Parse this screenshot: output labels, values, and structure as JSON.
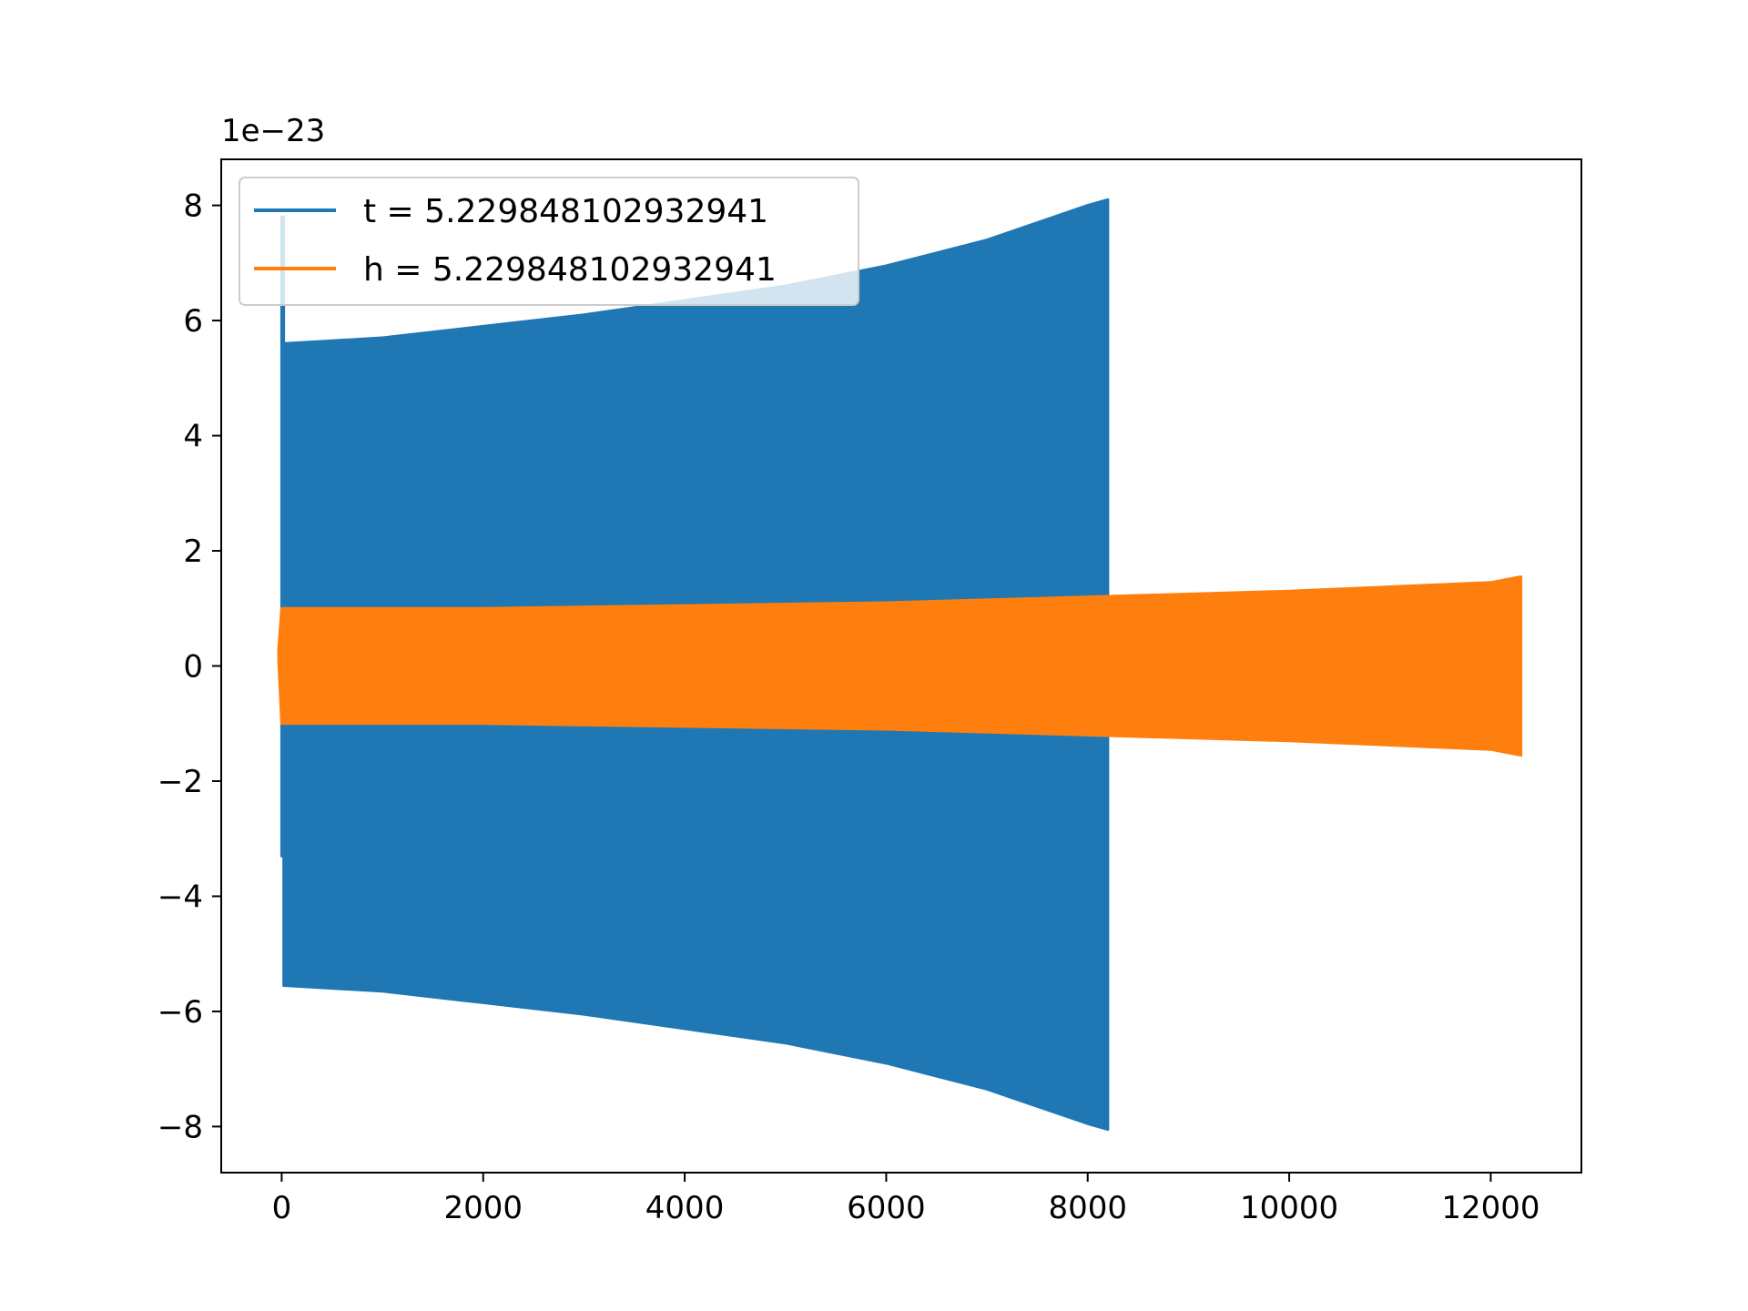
{
  "chart_data": {
    "type": "area",
    "title": "",
    "xlabel": "",
    "ylabel": "",
    "y_offset_text": "1e−23",
    "xlim": [
      -600,
      12900
    ],
    "ylim": [
      -8.8,
      8.8
    ],
    "x_ticks": [
      0,
      2000,
      4000,
      6000,
      8000,
      10000,
      12000
    ],
    "x_tick_labels": [
      "0",
      "2000",
      "4000",
      "6000",
      "8000",
      "10000",
      "12000"
    ],
    "y_ticks": [
      -8,
      -6,
      -4,
      -2,
      0,
      2,
      4,
      6,
      8
    ],
    "y_tick_labels": [
      "−8",
      "−6",
      "−4",
      "−2",
      "0",
      "2",
      "4",
      "6",
      "8"
    ],
    "grid": false,
    "legend_position": "upper-left",
    "series": [
      {
        "name": "t = 5.229848102932941",
        "color": "#1f77b4",
        "envelope_x": [
          0,
          20,
          20,
          1000,
          2000,
          3000,
          4000,
          5000,
          6000,
          7000,
          7500,
          8000,
          8200
        ],
        "upper": [
          7.8,
          7.8,
          5.6,
          5.7,
          5.9,
          6.1,
          6.35,
          6.6,
          6.95,
          7.4,
          7.7,
          8.0,
          8.1
        ],
        "lower": [
          -3.3,
          -3.3,
          -5.55,
          -5.65,
          -5.85,
          -6.05,
          -6.3,
          -6.55,
          -6.9,
          -7.35,
          -7.65,
          -7.95,
          -8.05
        ]
      },
      {
        "name": "h = 5.229848102932941",
        "color": "#ff7f0e",
        "envelope_x": [
          -30,
          0,
          2000,
          4000,
          6000,
          8000,
          10000,
          12000,
          12300
        ],
        "upper": [
          0.3,
          1.0,
          1.0,
          1.05,
          1.1,
          1.2,
          1.3,
          1.45,
          1.55
        ],
        "lower": [
          0.1,
          -1.0,
          -1.0,
          -1.05,
          -1.1,
          -1.2,
          -1.3,
          -1.45,
          -1.55
        ]
      }
    ]
  }
}
